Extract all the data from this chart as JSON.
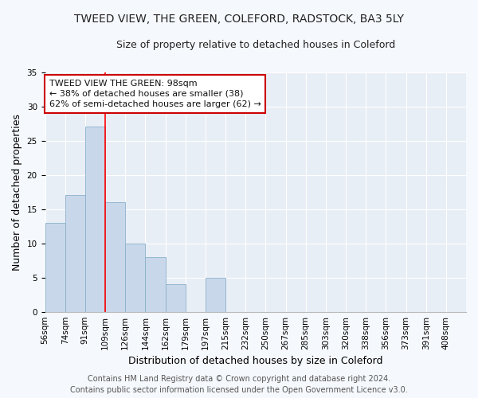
{
  "title": "TWEED VIEW, THE GREEN, COLEFORD, RADSTOCK, BA3 5LY",
  "subtitle": "Size of property relative to detached houses in Coleford",
  "xlabel": "Distribution of detached houses by size in Coleford",
  "ylabel": "Number of detached properties",
  "bin_labels": [
    "56sqm",
    "74sqm",
    "91sqm",
    "109sqm",
    "126sqm",
    "144sqm",
    "162sqm",
    "179sqm",
    "197sqm",
    "215sqm",
    "232sqm",
    "250sqm",
    "267sqm",
    "285sqm",
    "303sqm",
    "320sqm",
    "338sqm",
    "356sqm",
    "373sqm",
    "391sqm",
    "408sqm"
  ],
  "bar_heights": [
    13,
    17,
    27,
    16,
    10,
    8,
    4,
    0,
    5,
    0,
    0,
    0,
    0,
    0,
    0,
    0,
    0,
    0,
    0,
    0,
    0
  ],
  "bar_color": "#c8d8ea",
  "bar_edge_color": "#8ab0cc",
  "ylim": [
    0,
    35
  ],
  "yticks": [
    0,
    5,
    10,
    15,
    20,
    25,
    30,
    35
  ],
  "red_line_bin_index": 2,
  "annotation_title": "TWEED VIEW THE GREEN: 98sqm",
  "annotation_line1": "← 38% of detached houses are smaller (38)",
  "annotation_line2": "62% of semi-detached houses are larger (62) →",
  "annotation_box_facecolor": "#ffffff",
  "annotation_box_edgecolor": "#cc0000",
  "footer_line1": "Contains HM Land Registry data © Crown copyright and database right 2024.",
  "footer_line2": "Contains public sector information licensed under the Open Government Licence v3.0.",
  "plot_bg_color": "#e8eef5",
  "fig_bg_color": "#f5f8fc",
  "grid_color": "#ffffff",
  "grid_linewidth": 0.8,
  "title_fontsize": 10,
  "subtitle_fontsize": 9,
  "axis_label_fontsize": 9,
  "tick_fontsize": 7.5,
  "annotation_fontsize": 8,
  "footer_fontsize": 7
}
